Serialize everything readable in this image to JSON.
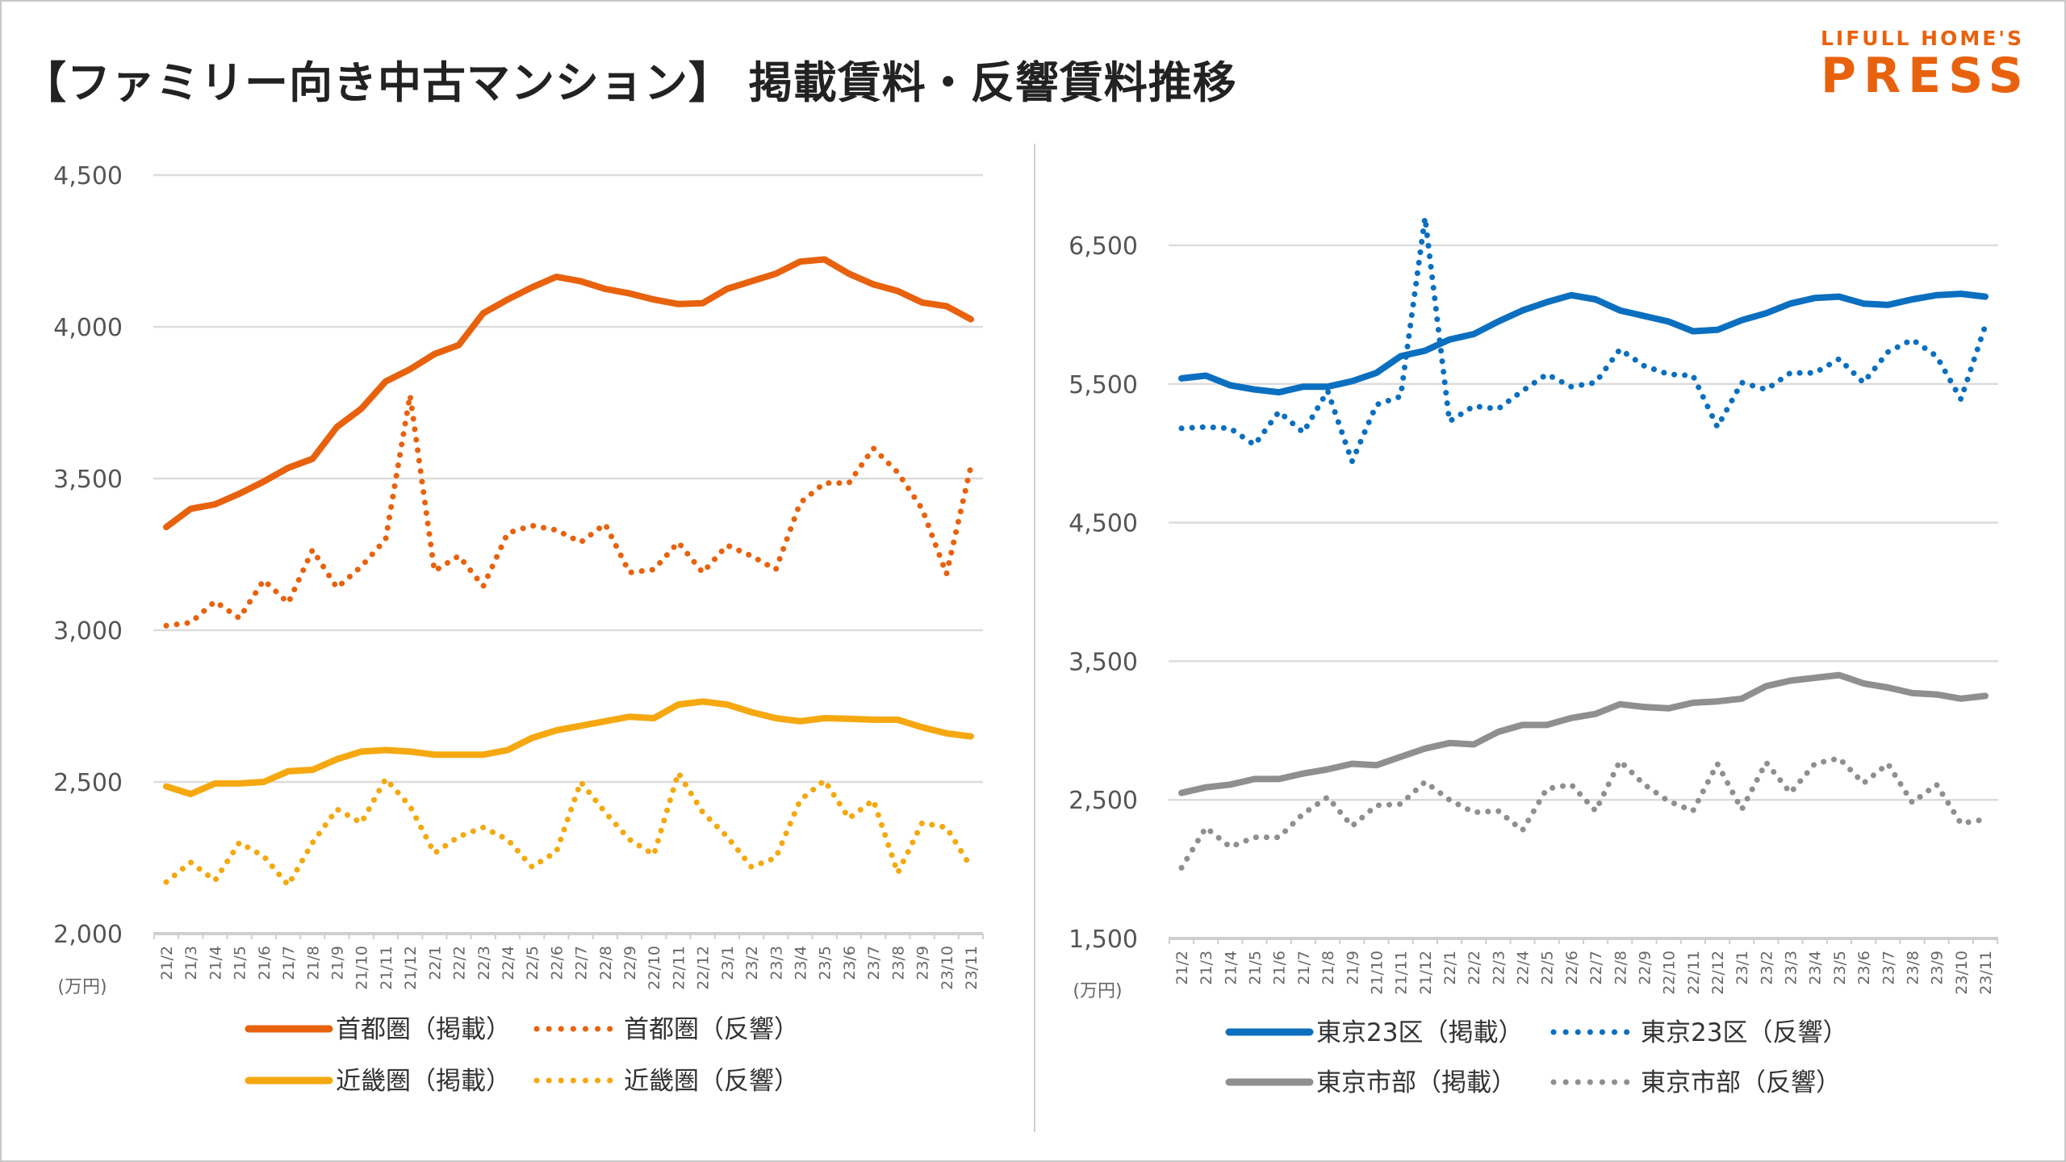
{
  "header": {
    "title": "【ファミリー向き中古マンション】 掲載賃料・反響賃料推移",
    "logo_line1": "LIFULL HOME'S",
    "logo_line2": "PRESS",
    "brand_color": "#e8620e"
  },
  "chart_data": [
    {
      "type": "line",
      "title": "",
      "xlabel": "",
      "ylabel": "(万円)",
      "unit_label": "(万円)",
      "ylim": [
        2000,
        4500
      ],
      "yticks": [
        2000,
        2500,
        3000,
        3500,
        4000,
        4500
      ],
      "ytick_labels": [
        "2,000",
        "2,500",
        "3,000",
        "3,500",
        "4,000",
        "4,500"
      ],
      "grid": true,
      "legend_position": "bottom",
      "x": [
        "21/2",
        "21/3",
        "21/4",
        "21/5",
        "21/6",
        "21/7",
        "21/8",
        "21/9",
        "21/10",
        "21/11",
        "21/12",
        "22/1",
        "22/2",
        "22/3",
        "22/4",
        "22/5",
        "22/6",
        "22/7",
        "22/8",
        "22/9",
        "22/10",
        "22/11",
        "22/12",
        "23/1",
        "23/2",
        "23/3",
        "23/4",
        "23/5",
        "23/6",
        "23/7",
        "23/8",
        "23/9",
        "23/10",
        "23/11"
      ],
      "series": [
        {
          "name": "首都圏（掲載）",
          "color": "#e8620e",
          "style": "solid",
          "values": [
            3340,
            3400,
            3415,
            3450,
            3490,
            3535,
            3565,
            3670,
            3730,
            3820,
            3860,
            3910,
            3940,
            4045,
            4090,
            4130,
            4165,
            4150,
            4125,
            4110,
            4090,
            4075,
            4078,
            4125,
            4150,
            4175,
            4215,
            4222,
            4175,
            4140,
            4118,
            4080,
            4068,
            4025
          ]
        },
        {
          "name": "首都圏（反響）",
          "color": "#e8620e",
          "style": "dotted",
          "values": [
            3015,
            3025,
            3095,
            3040,
            3165,
            3090,
            3265,
            3140,
            3210,
            3300,
            3775,
            3195,
            3245,
            3145,
            3320,
            3345,
            3330,
            3290,
            3350,
            3190,
            3200,
            3290,
            3190,
            3280,
            3245,
            3200,
            3420,
            3485,
            3485,
            3600,
            3520,
            3400,
            3185,
            3540
          ]
        },
        {
          "name": "近畿圏（掲載）",
          "color": "#f5a80f",
          "style": "solid",
          "values": [
            2485,
            2460,
            2495,
            2495,
            2500,
            2535,
            2540,
            2575,
            2600,
            2605,
            2600,
            2590,
            2590,
            2590,
            2605,
            2645,
            2670,
            2685,
            2700,
            2715,
            2710,
            2755,
            2765,
            2755,
            2730,
            2710,
            2700,
            2710,
            2708,
            2705,
            2705,
            2680,
            2660,
            2650
          ]
        },
        {
          "name": "近畿圏（反響）",
          "color": "#f5a80f",
          "style": "dotted",
          "values": [
            2170,
            2235,
            2175,
            2300,
            2255,
            2160,
            2300,
            2410,
            2365,
            2510,
            2420,
            2265,
            2320,
            2350,
            2310,
            2220,
            2270,
            2500,
            2400,
            2310,
            2260,
            2530,
            2400,
            2320,
            2220,
            2250,
            2440,
            2505,
            2380,
            2440,
            2200,
            2365,
            2350,
            2220
          ]
        }
      ]
    },
    {
      "type": "line",
      "title": "",
      "xlabel": "",
      "ylabel": "(万円)",
      "unit_label": "(万円)",
      "ylim": [
        1500,
        7000
      ],
      "yticks": [
        1500,
        2500,
        3500,
        4500,
        5500,
        6500
      ],
      "ytick_labels": [
        "1,500",
        "2,500",
        "3,500",
        "4,500",
        "5,500",
        "6,500"
      ],
      "grid": true,
      "legend_position": "bottom",
      "x": [
        "21/2",
        "21/3",
        "21/4",
        "21/5",
        "21/6",
        "21/7",
        "21/8",
        "21/9",
        "21/10",
        "21/11",
        "21/12",
        "22/1",
        "22/2",
        "22/3",
        "22/4",
        "22/5",
        "22/6",
        "22/7",
        "22/8",
        "22/9",
        "22/10",
        "22/11",
        "22/12",
        "23/1",
        "23/2",
        "23/3",
        "23/4",
        "23/5",
        "23/6",
        "23/7",
        "23/8",
        "23/9",
        "23/10",
        "23/11"
      ],
      "series": [
        {
          "name": "東京23区（掲載）",
          "color": "#0b6fc0",
          "style": "solid",
          "values": [
            5540,
            5560,
            5490,
            5460,
            5440,
            5480,
            5480,
            5520,
            5580,
            5700,
            5740,
            5820,
            5860,
            5950,
            6030,
            6090,
            6140,
            6110,
            6030,
            5990,
            5950,
            5880,
            5890,
            5960,
            6010,
            6080,
            6120,
            6130,
            6080,
            6070,
            6110,
            6140,
            6150,
            6130
          ]
        },
        {
          "name": "東京23区（反響）",
          "color": "#0b6fc0",
          "style": "dotted",
          "values": [
            5180,
            5190,
            5180,
            5060,
            5300,
            5150,
            5450,
            4940,
            5350,
            5410,
            6700,
            5230,
            5340,
            5320,
            5450,
            5570,
            5480,
            5510,
            5750,
            5630,
            5570,
            5560,
            5190,
            5510,
            5460,
            5580,
            5580,
            5680,
            5510,
            5730,
            5820,
            5700,
            5390,
            5920
          ]
        },
        {
          "name": "東京市部（掲載）",
          "color": "#8f8f8f",
          "style": "solid",
          "values": [
            2550,
            2590,
            2610,
            2650,
            2650,
            2690,
            2720,
            2760,
            2750,
            2810,
            2870,
            2910,
            2900,
            2990,
            3040,
            3040,
            3090,
            3120,
            3190,
            3170,
            3160,
            3200,
            3210,
            3230,
            3320,
            3360,
            3380,
            3400,
            3340,
            3310,
            3270,
            3260,
            3230,
            3250
          ]
        },
        {
          "name": "東京市部（反響）",
          "color": "#8f8f8f",
          "style": "dotted",
          "values": [
            2010,
            2300,
            2160,
            2230,
            2230,
            2400,
            2520,
            2310,
            2460,
            2470,
            2630,
            2500,
            2410,
            2420,
            2280,
            2580,
            2610,
            2420,
            2780,
            2610,
            2490,
            2420,
            2760,
            2430,
            2770,
            2550,
            2760,
            2800,
            2620,
            2760,
            2480,
            2610,
            2330,
            2360
          ]
        }
      ]
    }
  ]
}
